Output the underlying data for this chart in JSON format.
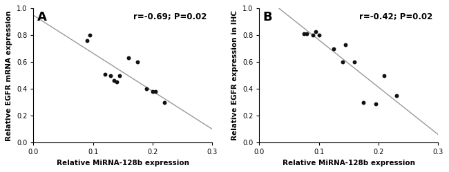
{
  "panel_A": {
    "label": "A",
    "scatter_x": [
      0.09,
      0.095,
      0.12,
      0.13,
      0.135,
      0.14,
      0.145,
      0.16,
      0.175,
      0.19,
      0.2,
      0.205,
      0.22
    ],
    "scatter_y": [
      0.76,
      0.8,
      0.51,
      0.5,
      0.46,
      0.45,
      0.5,
      0.63,
      0.6,
      0.4,
      0.38,
      0.38,
      0.3
    ],
    "annotation": "r=-0.69; P=0.02",
    "xlabel": "Relative MiRNA-128b expression",
    "ylabel": "Relative EGFR mRNA expression",
    "xlim": [
      0.0,
      0.3
    ],
    "ylim": [
      0.0,
      1.0
    ],
    "xticks": [
      0.0,
      0.1,
      0.2,
      0.3
    ],
    "yticks": [
      0.0,
      0.2,
      0.4,
      0.6,
      0.8,
      1.0
    ]
  },
  "panel_B": {
    "label": "B",
    "scatter_x": [
      0.075,
      0.08,
      0.09,
      0.095,
      0.1,
      0.125,
      0.14,
      0.145,
      0.16,
      0.175,
      0.195,
      0.21,
      0.23
    ],
    "scatter_y": [
      0.81,
      0.81,
      0.8,
      0.825,
      0.8,
      0.7,
      0.6,
      0.73,
      0.6,
      0.3,
      0.29,
      0.5,
      0.35
    ],
    "annotation": "r=-0.42; P=0.02",
    "xlabel": "Relative MiRNA-128b expression",
    "ylabel": "Relative EGFR expression in IHC",
    "xlim": [
      0.0,
      0.3
    ],
    "ylim": [
      0.0,
      1.0
    ],
    "xticks": [
      0.0,
      0.1,
      0.2,
      0.3
    ],
    "yticks": [
      0.0,
      0.2,
      0.4,
      0.6,
      0.8,
      1.0
    ]
  },
  "dot_color": "#111111",
  "dot_size": 18,
  "line_color": "#999999",
  "line_width": 1.0,
  "bg_color": "#ffffff",
  "label_fontsize": 7.5,
  "annot_fontsize": 8.5,
  "tick_fontsize": 7,
  "panel_label_fontsize": 13
}
